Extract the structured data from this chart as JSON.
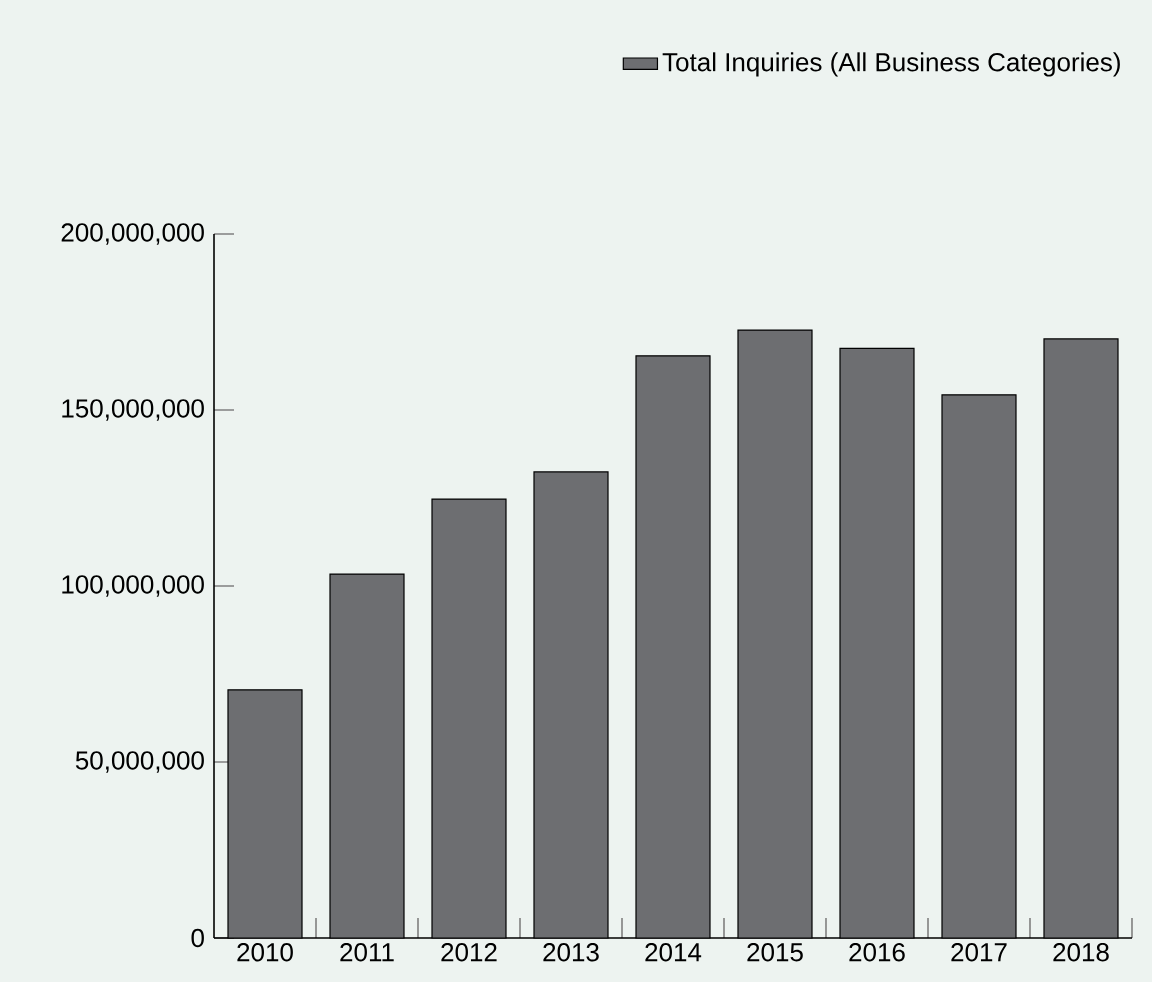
{
  "chart_data": {
    "type": "bar",
    "categories": [
      "2010",
      "2011",
      "2012",
      "2013",
      "2014",
      "2015",
      "2016",
      "2017",
      "2018"
    ],
    "series": [
      {
        "name": "Total Inquiries (All Business Categories)",
        "color": "#6d6e71",
        "values": [
          70500000,
          103400000,
          124700000,
          132400000,
          165400000,
          172700000,
          167500000,
          154300000,
          170200000
        ]
      }
    ],
    "ylim": [
      0,
      200000000
    ],
    "yticks": [
      {
        "value": 0,
        "label": "0"
      },
      {
        "value": 50000000,
        "label": "50,000,000"
      },
      {
        "value": 100000000,
        "label": "100,000,000"
      },
      {
        "value": 150000000,
        "label": "150,000,000"
      },
      {
        "value": 200000000,
        "label": "200,000,000"
      }
    ],
    "legend": "top right"
  }
}
